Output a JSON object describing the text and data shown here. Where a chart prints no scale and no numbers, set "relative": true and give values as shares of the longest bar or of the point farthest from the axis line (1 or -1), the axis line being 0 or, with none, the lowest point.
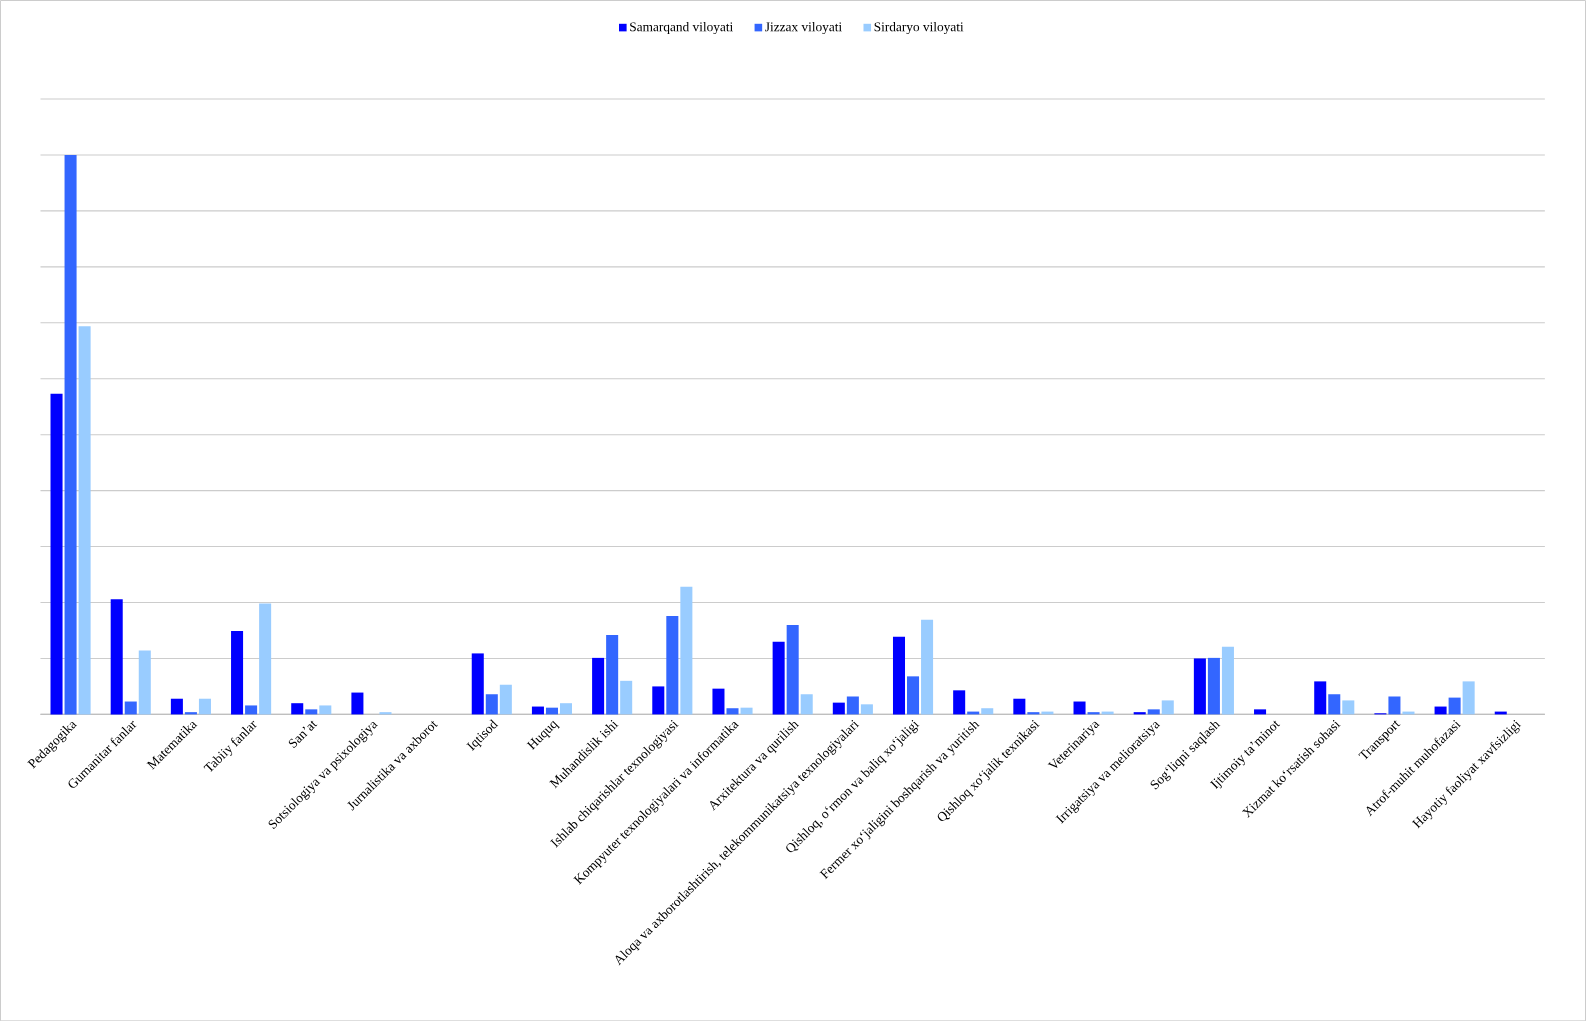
{
  "chart_data": {
    "type": "bar",
    "relative": true,
    "grid": "y",
    "legend": "top",
    "categories": [
      "Pedagogika",
      "Gumanitar fanlar",
      "Matematika",
      "Tabiiy fanlar",
      "Sanʼat",
      "Sotsiologiya va psixologiya",
      "Jurnalistika va axborot",
      "Iqtisod",
      "Huquq",
      "Muhandislik ishi",
      "Ishlab chiqarishlar texnologiyasi",
      "Kompyuter texnologiyalari va informatika",
      "Arxitektura va qurilish",
      "Aloqa va axborotlashtirish, telekommunikatsiya texnologiyalari",
      "Qishloq, oʻrmon va baliq xoʻjaligi",
      "Fermer xoʻjaligini  boshqarish va yuritish",
      "Qishloq xoʻjalik  texnikasi",
      "Veterinariya",
      "Irrigatsiya va melioratsiya",
      "Sogʻliqni  saqlash",
      "Ijtimoiy  taʼminot",
      "Xizmat  koʻrsatish sohasi",
      "Transport",
      "Atrof-muhit muhofazasi",
      "Hayotiy faoliyat xavfsizligi"
    ],
    "series": [
      {
        "name": "Samarqand viloyati",
        "color": "#0000ff",
        "values": [
          0.573,
          0.206,
          0.028,
          0.149,
          0.02,
          0.039,
          0,
          0.109,
          0.014,
          0.101,
          0.05,
          0.046,
          0.13,
          0.021,
          0.139,
          0.043,
          0.028,
          0.023,
          0.004,
          0.1,
          0.009,
          0.059,
          0.002,
          0.014,
          0.005
        ]
      },
      {
        "name": "Jizzax viloyati",
        "color": "#3366ff",
        "values": [
          1,
          0.023,
          0.004,
          0.016,
          0.009,
          0,
          0,
          0.036,
          0.012,
          0.142,
          0.176,
          0.011,
          0.16,
          0.032,
          0.068,
          0.005,
          0.004,
          0.004,
          0.009,
          0.101,
          0,
          0.036,
          0.032,
          0.03,
          0
        ]
      },
      {
        "name": "Sirdaryo viloyati",
        "color": "#99ccff",
        "values": [
          0.694,
          0.114,
          0.028,
          0.198,
          0.016,
          0.004,
          0,
          0.053,
          0.02,
          0.06,
          0.228,
          0.012,
          0.036,
          0.018,
          0.169,
          0.011,
          0.005,
          0.005,
          0.025,
          0.121,
          0,
          0.025,
          0.005,
          0.059,
          0
        ]
      }
    ]
  }
}
